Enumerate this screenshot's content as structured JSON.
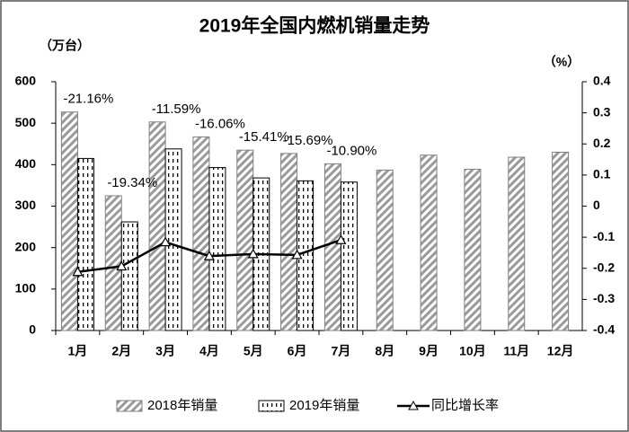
{
  "chart_data": {
    "type": "bar",
    "title": "2019年全国内燃机销量走势",
    "y_label": "（万台）",
    "y2_label": "（%）",
    "categories": [
      "1月",
      "2月",
      "3月",
      "4月",
      "5月",
      "6月",
      "7月",
      "8月",
      "9月",
      "10月",
      "11月",
      "12月"
    ],
    "series": [
      {
        "name": "2018年销量",
        "type": "bar",
        "pattern": "diagonal",
        "color": "#808080",
        "values": [
          527,
          325,
          503,
          467,
          435,
          427,
          402,
          387,
          423,
          389,
          418,
          430
        ]
      },
      {
        "name": "2019年销量",
        "type": "bar",
        "pattern": "dashes",
        "color": "#000000",
        "values": [
          415,
          262,
          438,
          393,
          368,
          361,
          358,
          null,
          null,
          null,
          null,
          null
        ]
      },
      {
        "name": "同比增长率",
        "type": "line",
        "axis": "y2",
        "color": "#000000",
        "values": [
          -0.2116,
          -0.1934,
          -0.1159,
          -0.1606,
          -0.1541,
          -0.1569,
          -0.109,
          null,
          null,
          null,
          null,
          null
        ],
        "value_labels": [
          "-21.16%",
          "-19.34%",
          "-11.59%",
          "-16.06%",
          "-15.41%",
          "-15.69%",
          "-10.90%",
          null,
          null,
          null,
          null,
          null
        ]
      }
    ],
    "ylim": [
      0,
      600
    ],
    "yticks": [
      0,
      100,
      200,
      300,
      400,
      500,
      600
    ],
    "y2lim": [
      -0.4,
      0.4
    ],
    "y2ticks": [
      -0.4,
      -0.3,
      -0.2,
      -0.1,
      0,
      0.1,
      0.2,
      0.3,
      0.4
    ],
    "legend": "bottom"
  }
}
